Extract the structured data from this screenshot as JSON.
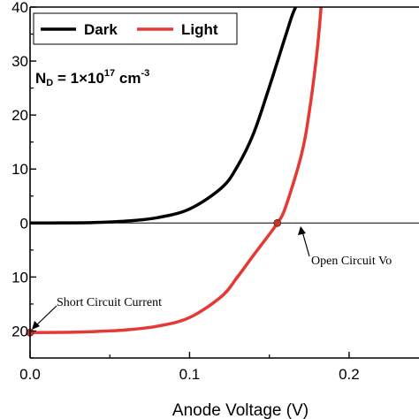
{
  "chart_data": {
    "type": "line",
    "title": "",
    "xlabel": "Anode Voltage (V)",
    "ylabel": "",
    "xlim": [
      0,
      0.22
    ],
    "ylim": [
      -25,
      40
    ],
    "x_ticks": [
      0.0,
      0.1,
      0.2
    ],
    "x_tick_labels": [
      "0.0",
      "0.1",
      "0.2"
    ],
    "y_ticks": [
      -20,
      -10,
      0,
      10,
      20,
      30,
      40
    ],
    "y_tick_labels": [
      "20",
      "10",
      "0",
      "10",
      "20",
      "30",
      "40"
    ],
    "grid": false,
    "legend_position": "top-left",
    "series": [
      {
        "name": "Dark",
        "color": "#000000",
        "x": [
          0,
          0.02,
          0.04,
          0.06,
          0.08,
          0.1,
          0.12,
          0.13,
          0.14,
          0.15,
          0.16,
          0.165,
          0.17
        ],
        "y": [
          0,
          0.02,
          0.1,
          0.35,
          1.0,
          2.6,
          6.5,
          10.5,
          16.5,
          25.2,
          34.5,
          39.0,
          42.0
        ]
      },
      {
        "name": "Light",
        "color": "#e53935",
        "x": [
          0,
          0.02,
          0.04,
          0.06,
          0.08,
          0.1,
          0.12,
          0.13,
          0.14,
          0.15,
          0.155,
          0.16,
          0.17,
          0.175,
          0.18,
          0.183
        ],
        "y": [
          -20.3,
          -20.25,
          -20.1,
          -19.8,
          -19.1,
          -17.5,
          -13.6,
          -10.0,
          -6.0,
          -2.1,
          0.0,
          2.8,
          12.5,
          20.5,
          32.0,
          42.0
        ]
      }
    ],
    "legend": {
      "items": [
        "Dark",
        "Light"
      ]
    },
    "annotations": {
      "nd_label": "N",
      "nd_sub": "D",
      "nd_eq": " = 1×10",
      "nd_exp": "17",
      "nd_unit": " cm",
      "nd_unit_exp": "-3",
      "open_circuit": "Open Circuit Vo",
      "short_circuit": "Short Circuit Current",
      "open_circuit_point": {
        "x": 0.155,
        "y": 0
      },
      "short_circuit_point": {
        "x": 0.0,
        "y": -20.3
      }
    },
    "marker_color": "#c0392b"
  }
}
